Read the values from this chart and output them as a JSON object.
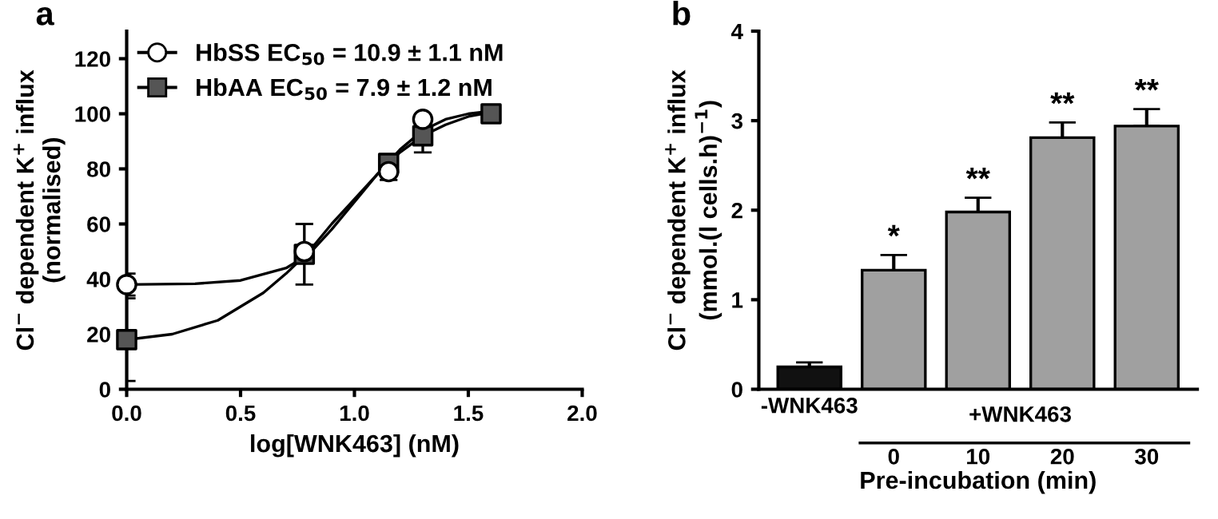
{
  "chart_data": [
    {
      "type": "scatter",
      "title": "a",
      "xlabel": "log[WNK463] (nM)",
      "ylabel": "Cl$^{−}$ dependent K$^{+}$ influx\n(normalised)",
      "xlim": [
        0,
        2
      ],
      "xticks": [
        {
          "value": 0,
          "label": "0.0"
        },
        {
          "value": 0.5,
          "label": "0.5"
        },
        {
          "value": 1,
          "label": "1.0"
        },
        {
          "value": 1.5,
          "label": "1.5"
        },
        {
          "value": 2,
          "label": "2.0"
        }
      ],
      "ylim": [
        0,
        130
      ],
      "yticks": [
        0,
        20,
        40,
        60,
        80,
        100,
        120
      ],
      "grid": false,
      "legend": "top left",
      "series": [
        {
          "name": "HbSS EC$_{50}$ = 10.9 ± 1.1 nM",
          "type": "scatter",
          "marker": "circle",
          "color": "#ffffff",
          "x": [
            0,
            0.78,
            1.15,
            1.3
          ],
          "values": [
            38,
            50,
            79,
            98
          ],
          "errors": [
            4,
            null,
            3,
            null
          ]
        },
        {
          "name": "HbAA EC$_{50}$ = 7.9 ± 1.2 nM",
          "type": "scatter",
          "marker": "square",
          "color": "#555555",
          "x": [
            0,
            0.78,
            1.15,
            1.3,
            1.6
          ],
          "values": [
            18,
            49,
            82,
            92,
            100
          ],
          "errors": [
            15,
            11,
            2,
            6,
            null
          ]
        },
        {
          "type": "line",
          "color": "#000000",
          "x": [
            0,
            0.3,
            0.5,
            0.7,
            0.8,
            0.9,
            1.0,
            1.1,
            1.2,
            1.3,
            1.4,
            1.5,
            1.6
          ],
          "values": [
            38,
            38.3,
            39.5,
            44,
            49,
            58,
            68,
            78,
            87,
            94,
            98,
            100,
            101
          ]
        },
        {
          "type": "line",
          "color": "#000000",
          "x": [
            0,
            0.2,
            0.4,
            0.6,
            0.7,
            0.8,
            0.9,
            1.0,
            1.1,
            1.2,
            1.3,
            1.4,
            1.5,
            1.6
          ],
          "values": [
            18,
            20,
            25,
            35,
            42,
            50,
            60,
            69,
            78,
            86,
            92,
            96,
            99,
            100.5
          ]
        }
      ]
    },
    {
      "type": "bar",
      "title": "b",
      "xlabel": "Pre-incubation (min)",
      "ylabel": "Cl$^{−}$ dependent K$^{+}$ influx\n(mmol.(l cells.h)$^{−1}$)",
      "categories": [
        "-WNK463",
        "0",
        "10",
        "20",
        "30"
      ],
      "ylim": [
        0,
        4
      ],
      "yticks": [
        0,
        1,
        2,
        3,
        4
      ],
      "grid": false,
      "values": [
        0.25,
        1.33,
        1.98,
        2.81,
        2.94
      ],
      "colors": [
        "#111111",
        "#a0a0a0",
        "#a0a0a0",
        "#a0a0a0",
        "#a0a0a0"
      ],
      "errors": [
        [
          0.25,
          0.3
        ],
        [
          1.33,
          1.5
        ],
        [
          1.98,
          2.14
        ],
        [
          2.81,
          2.98
        ],
        [
          2.94,
          3.13
        ]
      ],
      "annotations": [
        {
          "text": "*",
          "x": "0",
          "y": 1.5
        },
        {
          "text": "**",
          "x": "10",
          "y": 2.14
        },
        {
          "text": "**",
          "x": "20",
          "y": 2.98
        },
        {
          "text": "**",
          "x": "30",
          "y": 3.13
        },
        "+WNK463"
      ]
    }
  ]
}
